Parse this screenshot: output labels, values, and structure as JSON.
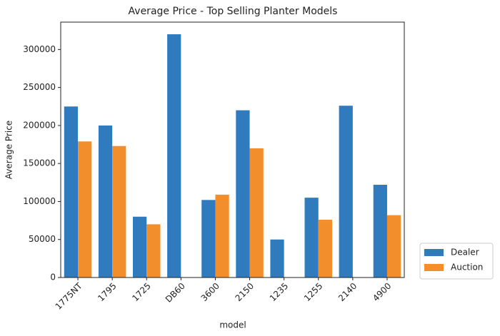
{
  "chart_data": {
    "type": "bar",
    "title": "Average Price - Top Selling Planter Models",
    "x_label": "model",
    "y_label": "Average Price",
    "categories": [
      "1775NT",
      "1795",
      "1725",
      "DB60",
      "3600",
      "2150",
      "1235",
      "1255",
      "2140",
      "4900"
    ],
    "series": [
      {
        "name": "Dealer",
        "color": "#2f7bbd",
        "values": [
          225000,
          200000,
          80000,
          320000,
          102000,
          220000,
          50000,
          105000,
          226000,
          122000
        ]
      },
      {
        "name": "Auction",
        "color": "#f28e2b",
        "values": [
          179000,
          173000,
          70000,
          null,
          109000,
          170000,
          null,
          76000,
          null,
          82000
        ]
      }
    ],
    "ylim": [
      0,
      336000
    ],
    "yticks": [
      0,
      50000,
      100000,
      150000,
      200000,
      250000,
      300000
    ],
    "grid": false,
    "legend": "right"
  }
}
